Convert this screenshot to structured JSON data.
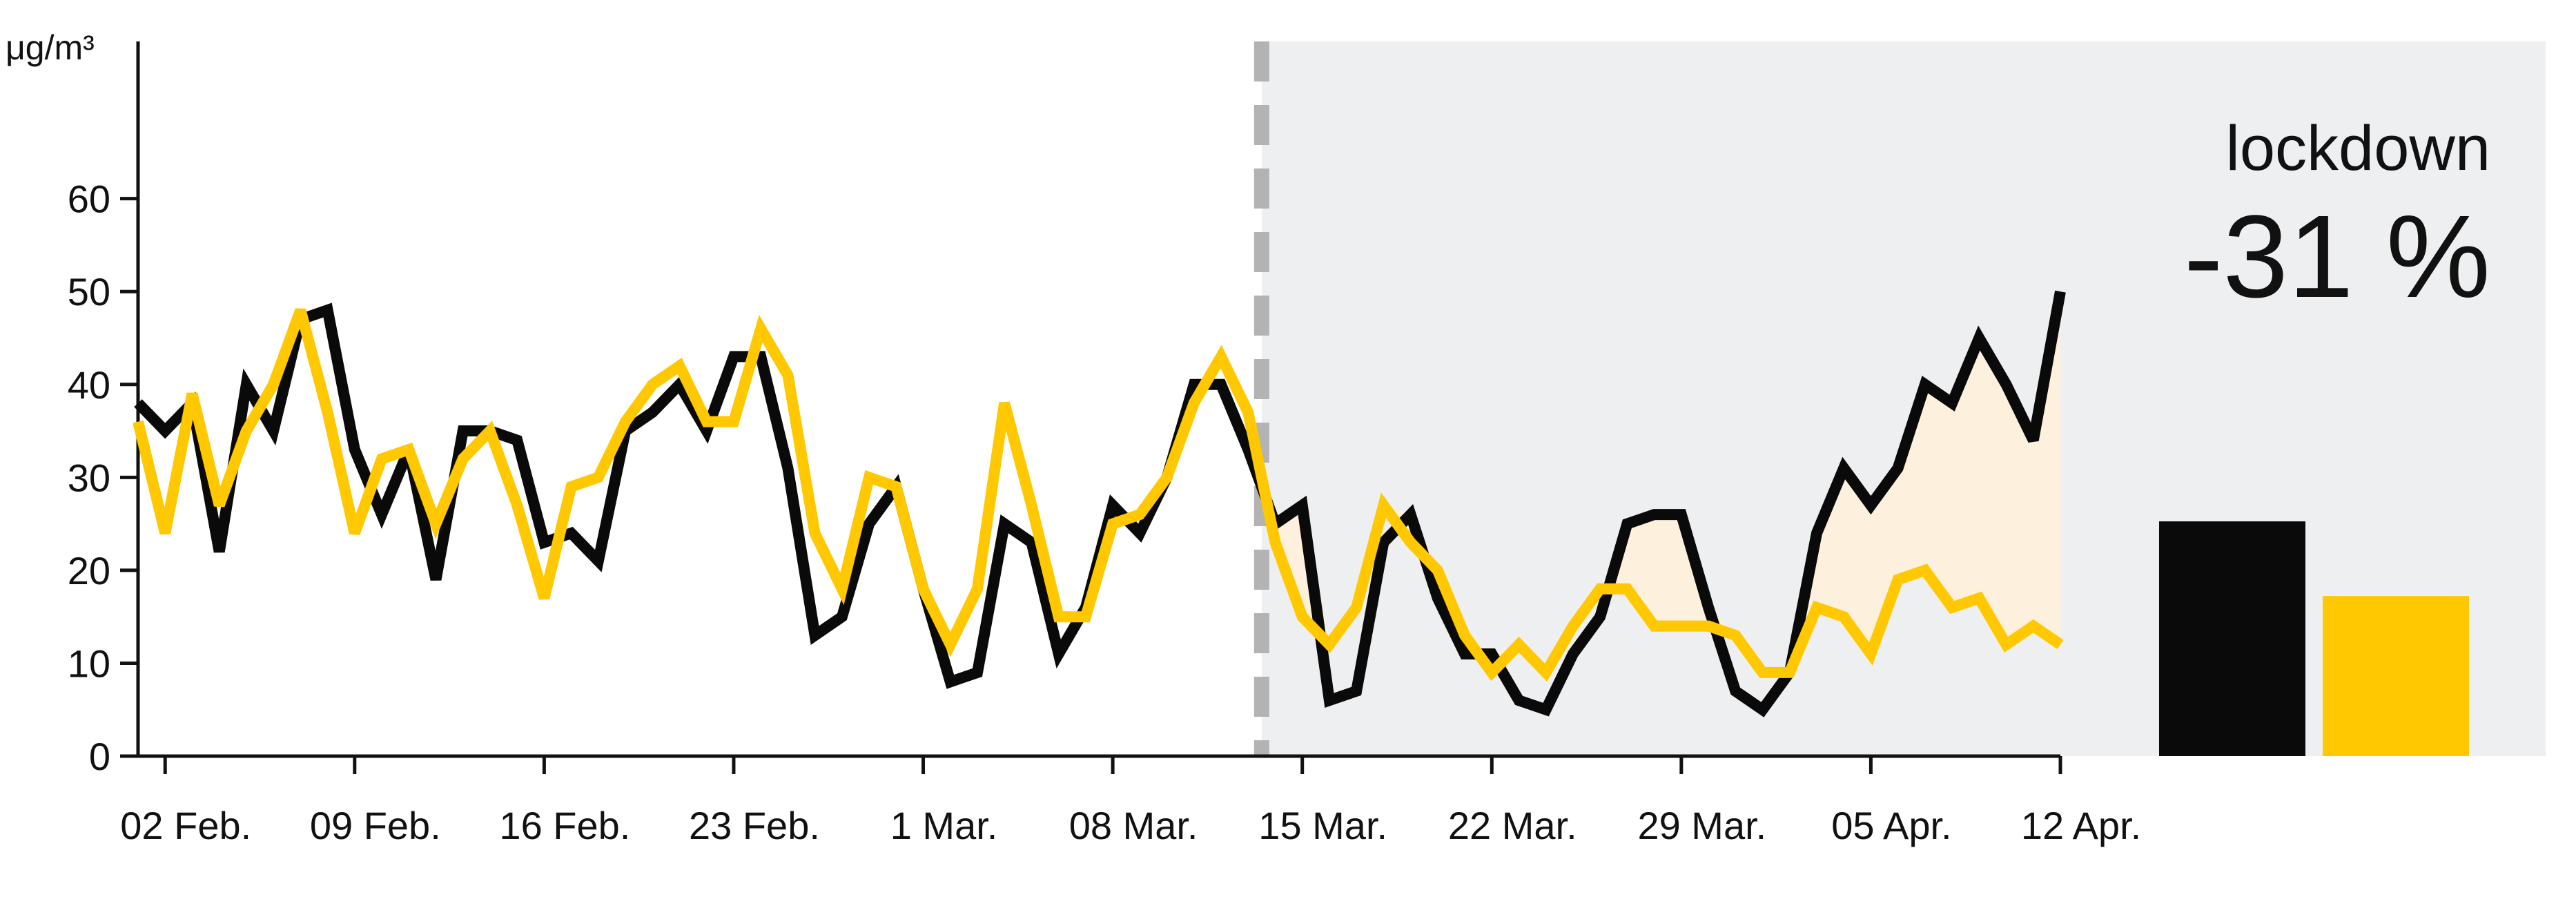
{
  "chart_data": {
    "type": "line",
    "ylabel": "μg/m³",
    "ylim": [
      0,
      68
    ],
    "yticks": [
      0,
      10,
      20,
      30,
      40,
      50,
      60
    ],
    "x_ticks": [
      "02 Feb.",
      "09 Feb.",
      "16 Feb.",
      "23 Feb.",
      "1 Mar.",
      "08 Mar.",
      "15 Mar.",
      "22 Mar.",
      "29 Mar.",
      "05 Apr.",
      "12 Apr."
    ],
    "x_tick_days": [
      1,
      8,
      15,
      22,
      29,
      36,
      43,
      50,
      57,
      64,
      71
    ],
    "x_range_days": [
      0,
      71
    ],
    "lockdown_start_day": 41.5,
    "grid": false,
    "series": [
      {
        "color": "#0a0a0a",
        "values": [
          38,
          35,
          38,
          22,
          40,
          35,
          47,
          48,
          33,
          26,
          33,
          19,
          35,
          35,
          34,
          23,
          24,
          21,
          35,
          37,
          40,
          35,
          43,
          43,
          31,
          13,
          15,
          25,
          29,
          18,
          8,
          9,
          25,
          23,
          11,
          16,
          27,
          24,
          30,
          40,
          40,
          33,
          25,
          27,
          6,
          7,
          23,
          26,
          17,
          11,
          11,
          6,
          5,
          11,
          15,
          25,
          26,
          26,
          16,
          7,
          5,
          9,
          24,
          31,
          27,
          31,
          40,
          38,
          45,
          40,
          34,
          50
        ]
      },
      {
        "color": "#ffc800",
        "values": [
          36,
          24,
          39,
          27,
          35,
          40,
          48,
          37,
          24,
          32,
          33,
          25,
          32,
          35,
          27,
          17,
          29,
          30,
          36,
          40,
          42,
          36,
          36,
          46,
          41,
          24,
          18,
          30,
          29,
          18,
          12,
          18,
          38,
          27,
          15,
          15,
          25,
          26,
          30,
          38,
          43,
          37,
          23,
          15,
          12,
          16,
          27,
          23,
          20,
          13,
          9,
          12,
          9,
          14,
          18,
          18,
          14,
          14,
          14,
          13,
          9,
          9,
          16,
          15,
          11,
          19,
          20,
          16,
          17,
          12,
          14,
          12
        ]
      }
    ],
    "annotation": {
      "title": "lockdown",
      "value": "-31 %"
    },
    "summary_bars": [
      {
        "value": 22,
        "color": "#0a0a0a"
      },
      {
        "value": 15,
        "color": "#ffc800"
      }
    ],
    "colors": {
      "lockdown_background": "#eeeff1",
      "gap_fill": "#fdf1de",
      "divider": "#b3b3b3",
      "axis": "#111111"
    }
  }
}
